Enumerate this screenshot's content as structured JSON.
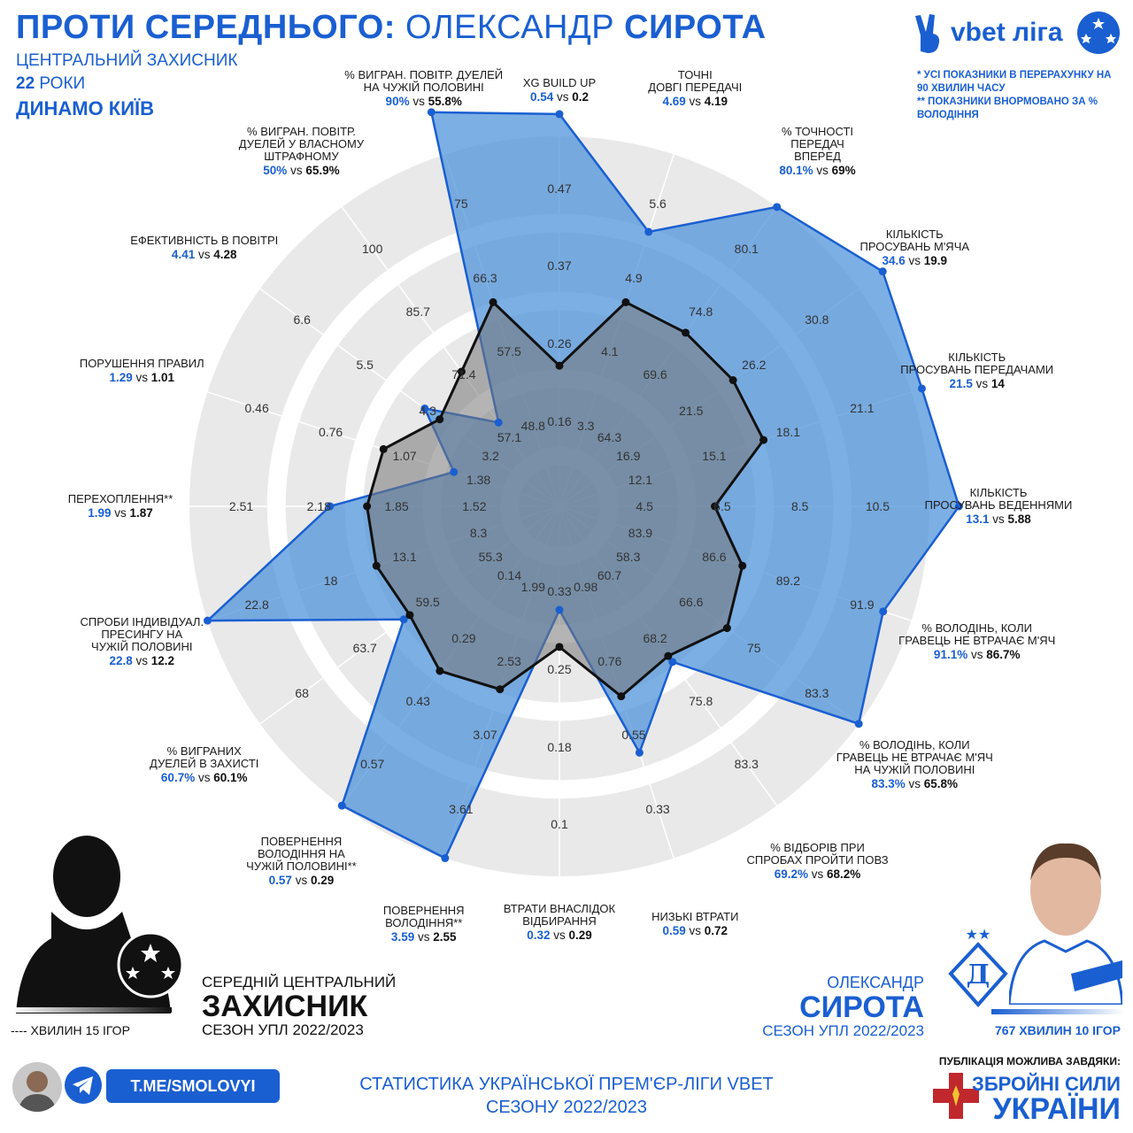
{
  "header": {
    "title_part1": "ПРОТИ СЕРЕДНЬОГО:",
    "title_part2": "ОЛЕКСАНДР",
    "title_part3": "СИРОТА",
    "position": "ЦЕНТРАЛЬНИЙ ЗАХИСНИК",
    "age_number": "22",
    "age_unit": "РОКИ",
    "club": "ДИНАМО КИЇВ"
  },
  "league_logo": {
    "text": "vbet ліга",
    "icon": "victory-hand-icon"
  },
  "notes": {
    "line1": "* УСІ ПОКАЗНИКИ В ПЕРЕРАХУНКУ НА 90 ХВИЛИН ЧАСУ",
    "line2": "** ПОКАЗНИКИ ВНОРМОВАНО ЗА % ВОЛОДІННЯ"
  },
  "chart_data": {
    "type": "radar",
    "series": [
      {
        "name": "ОЛЕКСАНДР СИРОТА",
        "color": "#1a5fd1",
        "fill": "#4a90d9"
      },
      {
        "name": "СЕРЕДНІЙ ЦЕНТРАЛЬНИЙ ЗАХИСНИК",
        "color": "#111111",
        "fill": "#777777"
      }
    ],
    "axes": [
      {
        "label": "XG BUILD UP",
        "player": "0.54",
        "avg": "0.2",
        "ticks": [
          "0.16",
          "0.26",
          "0.37",
          "0.47"
        ],
        "p_frac": 1.06,
        "a_frac": 0.38
      },
      {
        "label": "ТОЧНІ\nДОВГІ ПЕРЕДАЧІ",
        "player": "4.69",
        "avg": "4.19",
        "ticks": [
          "3.3",
          "4.1",
          "4.9",
          "5.6"
        ],
        "p_frac": 0.78,
        "a_frac": 0.58
      },
      {
        "label": "% ТОЧНОСТІ\nПЕРЕДАЧ\nВПЕРЕД",
        "player": "80.1%",
        "avg": "69%",
        "ticks": [
          "64.3",
          "69.6",
          "74.8",
          "80.1"
        ],
        "p_frac": 1.0,
        "a_frac": 0.58
      },
      {
        "label": "КІЛЬКІСТЬ\nПРОСУВАНЬ М'ЯЧА",
        "player": "34.6",
        "avg": "19.9",
        "ticks": [
          "16.9",
          "21.5",
          "26.2",
          "30.8"
        ],
        "p_frac": 1.08,
        "a_frac": 0.58
      },
      {
        "label": "КІЛЬКІСТЬ\nПРОСУВАНЬ ПЕРЕДАЧАМИ",
        "player": "21.5",
        "avg": "14",
        "ticks": [
          "12.1",
          "15.1",
          "18.1",
          "21.1"
        ],
        "p_frac": 1.03,
        "a_frac": 0.58
      },
      {
        "label": "КІЛЬКІСТЬ\nПРОСУВАНЬ ВЕДЕННЯМИ",
        "player": "13.1",
        "avg": "5.88",
        "ticks": [
          "4.5",
          "6.5",
          "8.5",
          "10.5"
        ],
        "p_frac": 1.08,
        "a_frac": 0.42
      },
      {
        "label": "%  ВОЛОДІНЬ, КОЛИ\nГРАВЕЦЬ НЕ ВТРАЧАЄ М'ЯЧ",
        "player": "91.1%",
        "avg": "86.7%",
        "ticks": [
          "83.9",
          "86.6",
          "89.2",
          "91.9"
        ],
        "p_frac": 0.92,
        "a_frac": 0.52
      },
      {
        "label": "%  ВОЛОДІНЬ, КОЛИ\nГРАВЕЦЬ НЕ ВТРАЧАЄ М'ЯЧ\nНА ЧУЖІЙ ПОЛОВИНІ",
        "player": "83.3%",
        "avg": "65.8%",
        "ticks": [
          "58.3",
          "66.6",
          "75",
          "83.3"
        ],
        "p_frac": 1.0,
        "a_frac": 0.56
      },
      {
        "label": "% ВІДБОРІВ ПРИ\nСПРОБАХ ПРОЙТИ ПОВЗ",
        "player": "69.2%",
        "avg": "68.2%",
        "ticks": [
          "60.7",
          "68.2",
          "75.8",
          "83.3"
        ],
        "p_frac": 0.52,
        "a_frac": 0.5
      },
      {
        "label": "НИЗЬКІ ВТРАТИ",
        "player": "0.59",
        "avg": "0.72",
        "ticks": [
          "0.98",
          "0.76",
          "0.55",
          "0.33"
        ],
        "p_frac": 0.7,
        "a_frac": 0.54
      },
      {
        "label": "ВТРАТИ ВНАСЛІДОК\nВІДБИРАННЯ",
        "player": "0.32",
        "avg": "0.29",
        "ticks": [
          "0.33",
          "0.25",
          "0.18",
          "0.1"
        ],
        "p_frac": 0.28,
        "a_frac": 0.38
      },
      {
        "label": "ПОВЕРНЕННЯ\nВОЛОДІННЯ**",
        "player": "3.59",
        "avg": "2.55",
        "ticks": [
          "1.99",
          "2.53",
          "3.07",
          "3.61"
        ],
        "p_frac": 1.0,
        "a_frac": 0.52
      },
      {
        "label": "ПОВЕРНЕННЯ\nВОЛОДІННЯ НА\nЧУЖІЙ ПОЛОВИНІ**",
        "player": "0.57",
        "avg": "0.29",
        "ticks": [
          "0.14",
          "0.29",
          "0.43",
          "0.57"
        ],
        "p_frac": 1.0,
        "a_frac": 0.55
      },
      {
        "label": "% ВИГРАНИХ\nДУЕЛЕЙ В ЗАХИСТІ",
        "player": "60.7%",
        "avg": "60.1%",
        "ticks": [
          "55.3",
          "59.5",
          "63.7",
          "68"
        ],
        "p_frac": 0.52,
        "a_frac": 0.5
      },
      {
        "label": "СПРОБИ ІНДИВІДУАЛ.\nПРЕСИНГУ НА\nЧУЖІЙ ПОЛОВИНІ",
        "player": "22.8",
        "avg": "12.2",
        "ticks": [
          "8.3",
          "13.1",
          "18",
          "22.8"
        ],
        "p_frac": 1.0,
        "a_frac": 0.52
      },
      {
        "label": "ПЕРЕХОПЛЕННЯ**",
        "player": "1.99",
        "avg": "1.87",
        "ticks": [
          "1.52",
          "1.85",
          "2.18",
          "2.51"
        ],
        "p_frac": 0.62,
        "a_frac": 0.52
      },
      {
        "label": "ПОРУШЕННЯ ПРАВИЛ",
        "player": "1.29",
        "avg": "1.01",
        "ticks": [
          "1.38",
          "1.07",
          "0.76",
          "0.46"
        ],
        "p_frac": 0.3,
        "a_frac": 0.5
      },
      {
        "label": "ЕФЕКТИВНІСТЬ В ПОВІТРІ",
        "player": "4.41",
        "avg": "4.28",
        "ticks": [
          "3.2",
          "4.3",
          "5.5",
          "6.6"
        ],
        "p_frac": 0.45,
        "a_frac": 0.4
      },
      {
        "label": "%  ВИГРАН. ПОВІТР.\nДУЕЛЕЙ У ВЛАСНОМУ\nШТРАФНОМУ",
        "player": "50%",
        "avg": "65.9%",
        "ticks": [
          "57.1",
          "71.4",
          "85.7",
          "100"
        ],
        "p_frac": 0.28,
        "a_frac": 0.45
      },
      {
        "label": "%  ВИГРАН. ПОВІТР. ДУЕЛЕЙ\nНА ЧУЖІЙ ПОЛОВИНІ",
        "player": "90%",
        "avg": "55.8%",
        "ticks": [
          "48.8",
          "57.5",
          "66.3",
          "75"
        ],
        "p_frac": 1.12,
        "a_frac": 0.58
      }
    ]
  },
  "average_block": {
    "line1": "СЕРЕДНІЙ ЦЕНТРАЛЬНИЙ",
    "line2": "ЗАХИСНИК",
    "line3": "СЕЗОН УПЛ 2022/2023",
    "minutes": "---- ХВИЛИН 15 ІГОР"
  },
  "player_block": {
    "line1": "ОЛЕКСАНДР",
    "line2": "СИРОТА",
    "line3": "СЕЗОН УПЛ 2022/2023",
    "minutes": "767 ХВИЛИН 10 ІГОР"
  },
  "footer": {
    "telegram": "T.ME/SMOLOVYI",
    "line1": "СТАТИСТИКА УКРАЇНСЬКОЇ ПРЕМ'ЄР-ЛІГИ VBET",
    "line2": "СЕЗОНУ 2022/2023",
    "publication": "ПУБЛІКАЦІЯ МОЖЛИВА ЗАВДЯКИ:",
    "zsu1": "ЗБРОЙНІ СИЛИ",
    "zsu2": "УКРАЇНИ"
  }
}
